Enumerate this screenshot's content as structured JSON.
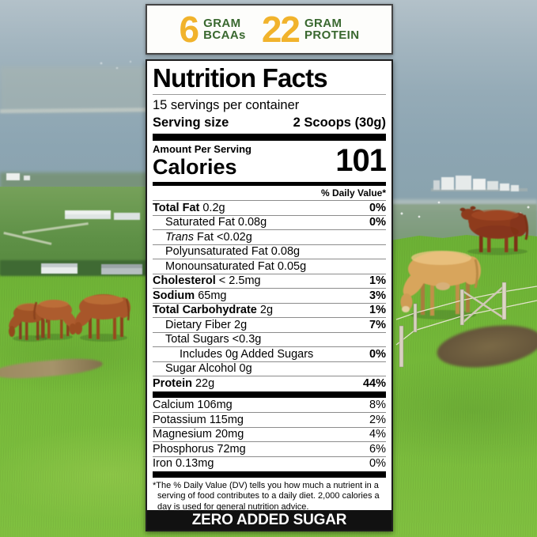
{
  "colors": {
    "accent_gold": "#F1B32C",
    "accent_green": "#39682F",
    "banner_bg": "#111111",
    "panel_bg": "#FFFFFF"
  },
  "badge": {
    "items": [
      {
        "number": "6",
        "unit": "GRAM",
        "name": "BCAAs"
      },
      {
        "number": "22",
        "unit": "GRAM",
        "name": "PROTEIN"
      }
    ]
  },
  "label": {
    "title": "Nutrition Facts",
    "servings_per_container": "15 servings per container",
    "serving_size_label": "Serving size",
    "serving_size_value": "2 Scoops (30g)",
    "amount_per_serving": "Amount Per Serving",
    "calories_label": "Calories",
    "calories_value": "101",
    "daily_value_header": "% Daily Value*",
    "nutrient_rows": [
      {
        "name": "Total Fat",
        "amount": "0.2g",
        "dv": "0%",
        "bold": true,
        "dv_bold": true,
        "indent": 0
      },
      {
        "name": "Saturated Fat",
        "amount": "0.08g",
        "dv": "0%",
        "dv_bold": true,
        "indent": 1
      },
      {
        "name": "Trans",
        "name2": "Fat",
        "amount": "<0.02g",
        "italic": true,
        "indent": 1
      },
      {
        "name": "Polyunsaturated Fat",
        "amount": "0.08g",
        "indent": 1
      },
      {
        "name": "Monounsaturated Fat",
        "amount": "0.05g",
        "indent": 1
      },
      {
        "name": "Cholesterol",
        "amount": "< 2.5mg",
        "dv": "1%",
        "bold": true,
        "dv_bold": true,
        "indent": 0
      },
      {
        "name": "Sodium",
        "amount": "65mg",
        "dv": "3%",
        "bold": true,
        "dv_bold": true,
        "indent": 0
      },
      {
        "name": "Total Carbohydrate",
        "amount": "2g",
        "dv": "1%",
        "bold": true,
        "dv_bold": true,
        "indent": 0
      },
      {
        "name": "Dietary Fiber",
        "amount": "2g",
        "dv": "7%",
        "dv_bold": true,
        "indent": 1
      },
      {
        "name": "Total Sugars",
        "amount": "<0.3g",
        "indent": 1
      },
      {
        "name": "Includes 0g Added Sugars",
        "amount": "",
        "dv": "0%",
        "dv_bold": true,
        "indent": 2
      },
      {
        "name": "Sugar Alcohol",
        "amount": "0g",
        "indent": 1
      },
      {
        "name": "Protein",
        "amount": "22g",
        "dv": "44%",
        "bold": true,
        "dv_bold": true,
        "indent": 0
      }
    ],
    "mineral_rows": [
      {
        "name": "Calcium",
        "amount": "106mg",
        "dv": "8%"
      },
      {
        "name": "Potassium",
        "amount": "115mg",
        "dv": "2%"
      },
      {
        "name": "Magnesium",
        "amount": "20mg",
        "dv": "4%"
      },
      {
        "name": "Phosphorus",
        "amount": "72mg",
        "dv": "6%"
      },
      {
        "name": "Iron",
        "amount": "0.13mg",
        "dv": "0%"
      }
    ],
    "footnote": "*The % Daily Value (DV) tells you how much a nutrient in a serving of food contributes to a daily diet. 2,000 calories a day is used for general nutrition advice.",
    "banner": "ZERO ADDED SUGAR"
  }
}
